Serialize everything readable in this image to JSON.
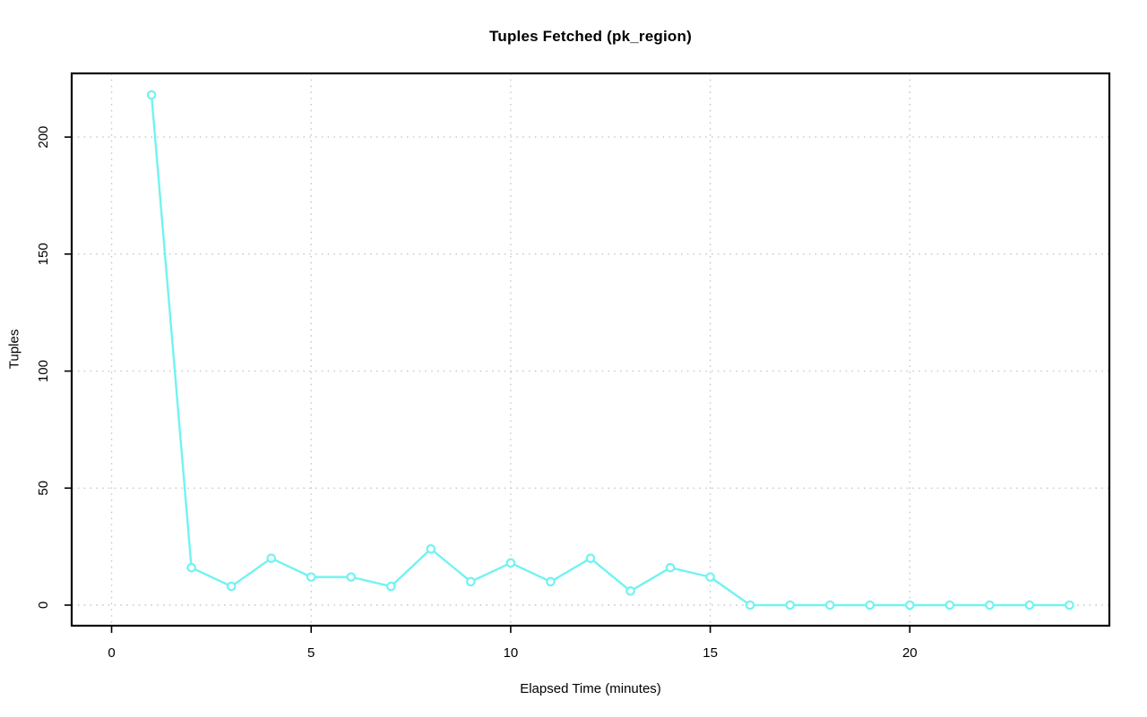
{
  "page": {
    "background": "#ffffff"
  },
  "chart_data": {
    "type": "line",
    "title": "Tuples Fetched (pk_region)",
    "xlabel": "Elapsed Time (minutes)",
    "ylabel": "Tuples",
    "x": [
      1,
      2,
      3,
      4,
      5,
      6,
      7,
      8,
      9,
      10,
      11,
      12,
      13,
      14,
      15,
      16,
      17,
      18,
      19,
      20,
      21,
      22,
      23,
      24
    ],
    "series": [
      {
        "name": "tuples_fetched",
        "values": [
          218,
          16,
          8,
          20,
          12,
          12,
          8,
          24,
          10,
          18,
          10,
          20,
          6,
          16,
          12,
          0,
          0,
          0,
          0,
          0,
          0,
          0,
          0,
          0
        ]
      }
    ],
    "xlim": [
      -1.0,
      25.0
    ],
    "ylim": [
      -8.8,
      227.2
    ],
    "xticks": [
      0,
      5,
      10,
      15,
      20
    ],
    "yticks": [
      0,
      50,
      100,
      150,
      200
    ],
    "grid": true,
    "legend_position": "none",
    "line_color": "#73f2f2",
    "marker": "open-circle",
    "marker_fill": "#ffffff",
    "grid_color": "#c8c8c8",
    "axis_color": "#000000",
    "tick_label_color": "#000000"
  }
}
